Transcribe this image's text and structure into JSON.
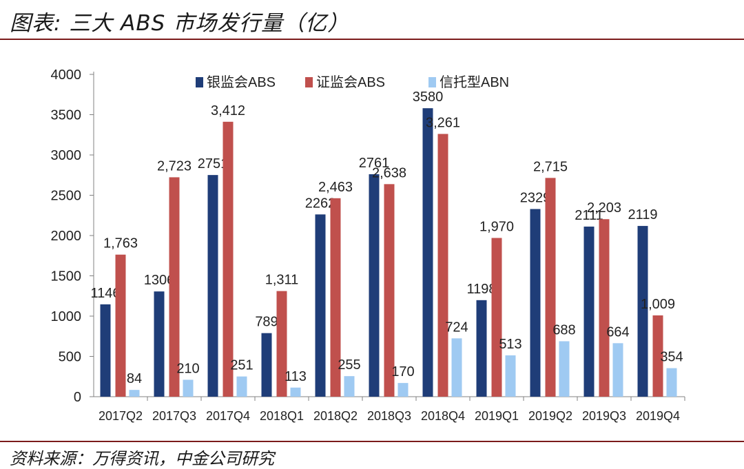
{
  "header": {
    "title": "图表: 三大 ABS 市场发行量（亿）"
  },
  "footer": {
    "source": "资料来源：万得资讯，中金公司研究"
  },
  "chart_data": {
    "type": "bar",
    "title": "",
    "xlabel": "",
    "ylabel": "",
    "ylim": [
      0,
      4000
    ],
    "yticks": [
      0,
      500,
      1000,
      1500,
      2000,
      2500,
      3000,
      3500,
      4000
    ],
    "grid": false,
    "legend_position": "top",
    "categories": [
      "2017Q2",
      "2017Q3",
      "2017Q4",
      "2018Q1",
      "2018Q2",
      "2018Q3",
      "2018Q4",
      "2019Q1",
      "2019Q2",
      "2019Q3",
      "2019Q4"
    ],
    "series": [
      {
        "name": "银监会ABS",
        "color": "#1f3d78",
        "values": [
          1146,
          1306,
          2751,
          789,
          2262,
          2761,
          3580,
          1198,
          2329,
          2111,
          2119
        ],
        "labels": [
          "1146",
          "1306",
          "2751",
          "789",
          "2262",
          "2761",
          "3580",
          "1198",
          "2329",
          "2111",
          "2119"
        ]
      },
      {
        "name": "证监会ABS",
        "color": "#c0504d",
        "values": [
          1763,
          2723,
          3412,
          1311,
          2463,
          2638,
          3261,
          1970,
          2715,
          2203,
          1009
        ],
        "labels": [
          "1,763",
          "2,723",
          "3,412",
          "1,311",
          "2,463",
          "2,638",
          "3,261",
          "1,970",
          "2,715",
          "2,203",
          "1,009"
        ]
      },
      {
        "name": "信托型ABN",
        "color": "#9fcaf2",
        "values": [
          84,
          210,
          251,
          113,
          255,
          170,
          724,
          513,
          688,
          664,
          354
        ],
        "labels": [
          "84",
          "210",
          "251",
          "113",
          "255",
          "170",
          "724",
          "513",
          "688",
          "664",
          "354"
        ]
      }
    ]
  }
}
